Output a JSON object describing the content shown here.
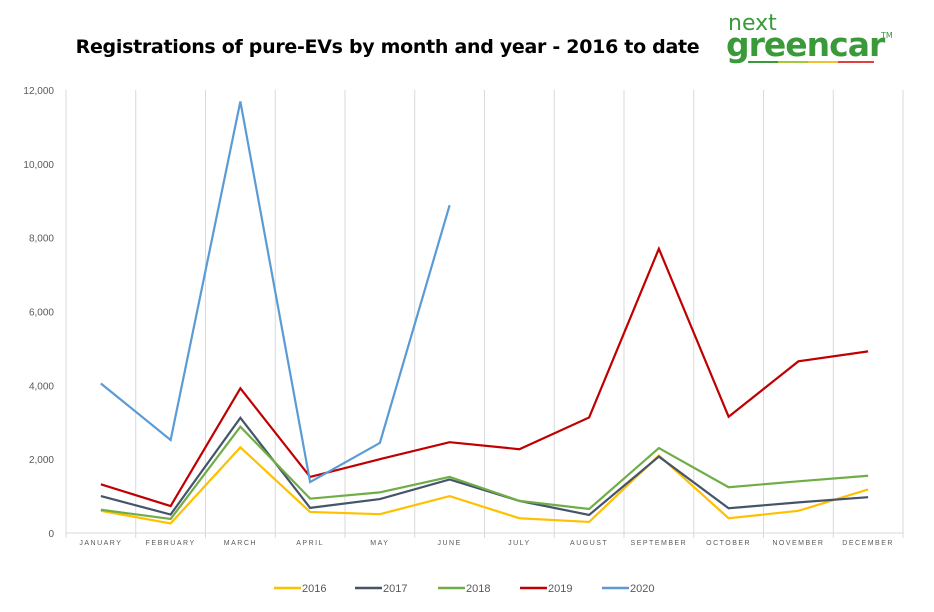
{
  "logo": {
    "line1": "next",
    "line2": "greencar",
    "tm": "™"
  },
  "chart_data": {
    "type": "line",
    "title": "Registrations of pure-EVs by month and year - 2016 to date",
    "xlabel": "",
    "ylabel": "",
    "categories": [
      "JANUARY",
      "FEBRUARY",
      "MARCH",
      "APRIL",
      "MAY",
      "JUNE",
      "JULY",
      "AUGUST",
      "SEPTEMBER",
      "OCTOBER",
      "NOVEMBER",
      "DECEMBER"
    ],
    "ylim": [
      0,
      12000
    ],
    "yticks": [
      0,
      2000,
      4000,
      6000,
      8000,
      10000,
      12000
    ],
    "ytick_labels": [
      "0",
      "2,000",
      "4,000",
      "6,000",
      "8,000",
      "10,000",
      "12,000"
    ],
    "grid": "vertical",
    "legend_position": "bottom",
    "series": [
      {
        "name": "2016",
        "color": "#FFC000",
        "values": [
          600,
          260,
          2320,
          570,
          510,
          1000,
          400,
          300,
          2100,
          400,
          600,
          1180
        ]
      },
      {
        "name": "2017",
        "color": "#44546A",
        "values": [
          1000,
          500,
          3120,
          680,
          920,
          1450,
          870,
          490,
          2070,
          670,
          830,
          970
        ]
      },
      {
        "name": "2018",
        "color": "#70AD47",
        "values": [
          630,
          380,
          2880,
          930,
          1100,
          1520,
          870,
          650,
          2300,
          1240,
          1400,
          1550
        ]
      },
      {
        "name": "2019",
        "color": "#C00000",
        "values": [
          1320,
          730,
          3920,
          1520,
          2000,
          2460,
          2270,
          3130,
          7700,
          3150,
          4650,
          4920
        ]
      },
      {
        "name": "2020",
        "color": "#5B9BD5",
        "values": [
          4050,
          2520,
          11690,
          1380,
          2440,
          8880,
          null,
          null,
          null,
          null,
          null,
          null
        ]
      }
    ]
  }
}
